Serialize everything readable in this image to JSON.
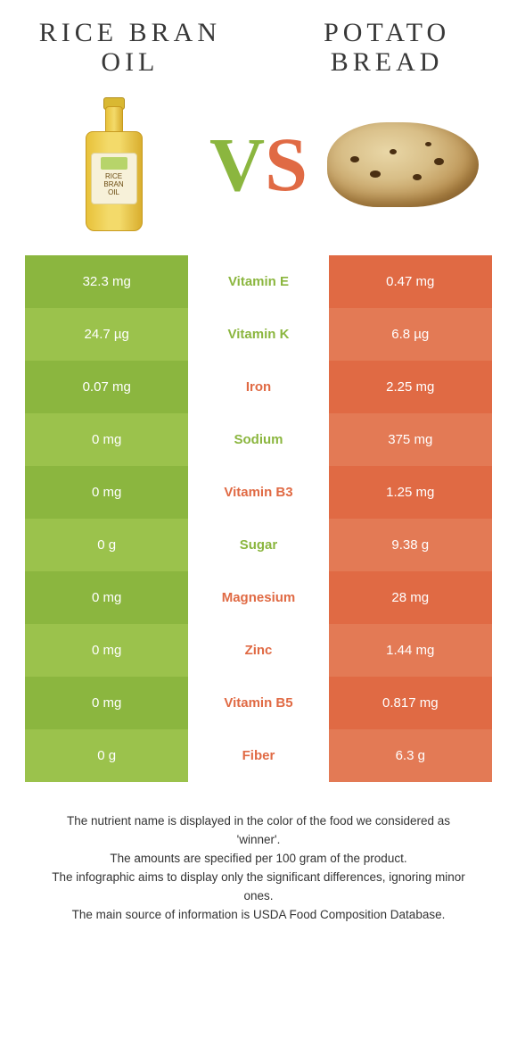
{
  "food_left": {
    "name": "Rice bran oil"
  },
  "food_right": {
    "name": "Potato bread"
  },
  "vs": {
    "v": "V",
    "s": "S"
  },
  "colors": {
    "left_base": "#8bb63f",
    "left_alt": "#9bc24c",
    "right_base": "#e06a44",
    "right_alt": "#e37a55",
    "mid_green": "#8bb63f",
    "mid_orange": "#e06a44"
  },
  "rows": [
    {
      "label": "Vitamin E",
      "left": "32.3 mg",
      "right": "0.47 mg",
      "winner": "left"
    },
    {
      "label": "Vitamin K",
      "left": "24.7 µg",
      "right": "6.8 µg",
      "winner": "left"
    },
    {
      "label": "Iron",
      "left": "0.07 mg",
      "right": "2.25 mg",
      "winner": "right"
    },
    {
      "label": "Sodium",
      "left": "0 mg",
      "right": "375 mg",
      "winner": "left"
    },
    {
      "label": "Vitamin B3",
      "left": "0 mg",
      "right": "1.25 mg",
      "winner": "right"
    },
    {
      "label": "Sugar",
      "left": "0 g",
      "right": "9.38 g",
      "winner": "left"
    },
    {
      "label": "Magnesium",
      "left": "0 mg",
      "right": "28 mg",
      "winner": "right"
    },
    {
      "label": "Zinc",
      "left": "0 mg",
      "right": "1.44 mg",
      "winner": "right"
    },
    {
      "label": "Vitamin B5",
      "left": "0 mg",
      "right": "0.817 mg",
      "winner": "right"
    },
    {
      "label": "Fiber",
      "left": "0 g",
      "right": "6.3 g",
      "winner": "right"
    }
  ],
  "footer": {
    "l1": "The nutrient name is displayed in the color of the food we considered as 'winner'.",
    "l2": "The amounts are specified per 100 gram of the product.",
    "l3": "The infographic aims to display only the significant differences, ignoring minor ones.",
    "l4": "The main source of information is USDA Food Composition Database."
  }
}
